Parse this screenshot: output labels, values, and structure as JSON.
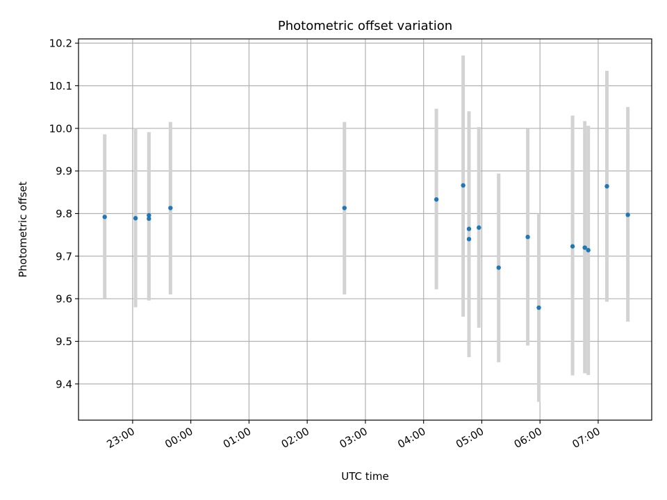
{
  "chart_data": {
    "type": "scatter",
    "title": "Photometric offset variation",
    "xlabel": "UTC time",
    "ylabel": "Photometric offset",
    "x_unit": "hours since 00:00 UTC of the first observing day (values above 24 fall on the next day)",
    "xlim": [
      22.07,
      31.92
    ],
    "ylim": [
      9.315,
      10.21
    ],
    "x_ticks": [
      {
        "value": 23,
        "label": "23:00"
      },
      {
        "value": 24,
        "label": "00:00"
      },
      {
        "value": 25,
        "label": "01:00"
      },
      {
        "value": 26,
        "label": "02:00"
      },
      {
        "value": 27,
        "label": "03:00"
      },
      {
        "value": 28,
        "label": "04:00"
      },
      {
        "value": 29,
        "label": "05:00"
      },
      {
        "value": 30,
        "label": "06:00"
      },
      {
        "value": 31,
        "label": "07:00"
      }
    ],
    "y_ticks": [
      {
        "value": 9.4,
        "label": "9.4"
      },
      {
        "value": 9.5,
        "label": "9.5"
      },
      {
        "value": 9.6,
        "label": "9.6"
      },
      {
        "value": 9.7,
        "label": "9.7"
      },
      {
        "value": 9.8,
        "label": "9.8"
      },
      {
        "value": 9.9,
        "label": "9.9"
      },
      {
        "value": 10.0,
        "label": "10.0"
      },
      {
        "value": 10.1,
        "label": "10.1"
      },
      {
        "value": 10.2,
        "label": "10.2"
      }
    ],
    "grid": true,
    "marker_color": "#1f77b4",
    "errorbar_color": "#d3d3d3",
    "points": [
      {
        "time": 22.52,
        "y": 9.792,
        "lo": 9.6,
        "hi": 9.986
      },
      {
        "time": 23.05,
        "y": 9.789,
        "lo": 9.58,
        "hi": 10.001
      },
      {
        "time": 23.28,
        "y": 9.796,
        "lo": 9.596,
        "hi": 9.991
      },
      {
        "time": 23.28,
        "y": 9.788,
        "lo": 9.596,
        "hi": 9.991
      },
      {
        "time": 23.65,
        "y": 9.813,
        "lo": 9.61,
        "hi": 10.015
      },
      {
        "time": 26.64,
        "y": 9.813,
        "lo": 9.61,
        "hi": 10.015
      },
      {
        "time": 28.22,
        "y": 9.833,
        "lo": 9.622,
        "hi": 10.046
      },
      {
        "time": 28.68,
        "y": 9.866,
        "lo": 9.558,
        "hi": 10.171
      },
      {
        "time": 28.78,
        "y": 9.764,
        "lo": 9.49,
        "hi": 10.04
      },
      {
        "time": 28.78,
        "y": 9.74,
        "lo": 9.463,
        "hi": 10.001
      },
      {
        "time": 28.95,
        "y": 9.767,
        "lo": 9.532,
        "hi": 10.003
      },
      {
        "time": 29.29,
        "y": 9.673,
        "lo": 9.451,
        "hi": 9.894
      },
      {
        "time": 29.79,
        "y": 9.745,
        "lo": 9.49,
        "hi": 10.0
      },
      {
        "time": 29.98,
        "y": 9.579,
        "lo": 9.358,
        "hi": 9.8
      },
      {
        "time": 30.56,
        "y": 9.723,
        "lo": 9.42,
        "hi": 10.03
      },
      {
        "time": 30.77,
        "y": 9.72,
        "lo": 9.425,
        "hi": 10.017
      },
      {
        "time": 30.83,
        "y": 9.714,
        "lo": 9.421,
        "hi": 10.006
      },
      {
        "time": 31.15,
        "y": 9.864,
        "lo": 9.593,
        "hi": 10.135
      },
      {
        "time": 31.51,
        "y": 9.797,
        "lo": 9.546,
        "hi": 10.05
      }
    ]
  }
}
